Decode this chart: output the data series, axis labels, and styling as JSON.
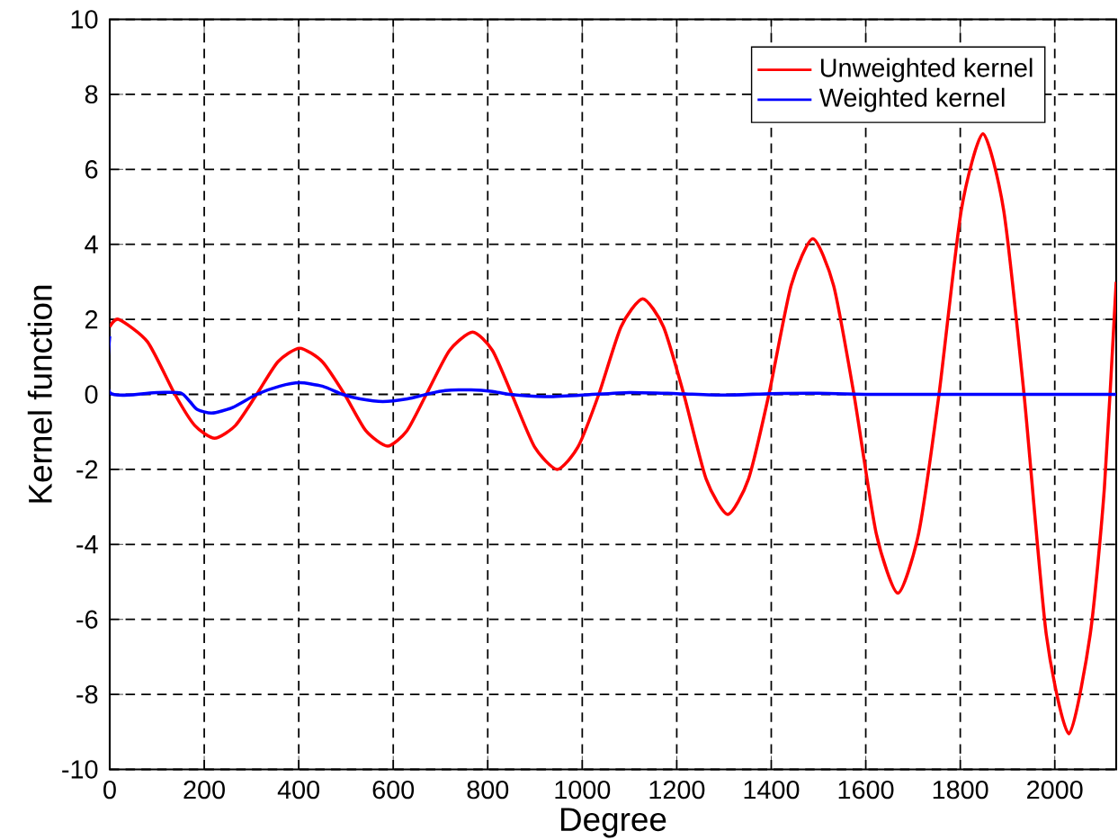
{
  "chart_data": {
    "type": "line",
    "xlabel": "Degree",
    "ylabel": "Kernel function",
    "xlim": [
      0,
      2130
    ],
    "ylim": [
      -10,
      10
    ],
    "xticks": [
      0,
      200,
      400,
      600,
      800,
      1000,
      1200,
      1400,
      1600,
      1800,
      2000
    ],
    "yticks": [
      -10,
      -8,
      -6,
      -4,
      -2,
      0,
      2,
      4,
      6,
      8,
      10
    ],
    "grid": true,
    "legend": "top right",
    "marker": "none",
    "line_style": "solid",
    "series": [
      {
        "name": "Unweighted kernel",
        "color": "#ff0000",
        "x": [
          0,
          19,
          80,
          138,
          180,
          222,
          266,
          311,
          356,
          402,
          450,
          497,
          542,
          588,
          629,
          670,
          719,
          768,
          810,
          851,
          899,
          947,
          991,
          1035,
          1082,
          1128,
          1172,
          1215,
          1262,
          1308,
          1352,
          1395,
          1442,
          1488,
          1532,
          1575,
          1622,
          1668,
          1712,
          1755,
          1802,
          1848,
          1892,
          1935,
          1982,
          2030,
          2075,
          2105,
          2130
        ],
        "values": [
          1.8,
          2.0,
          1.4,
          0,
          -0.83,
          -1.17,
          -0.83,
          0,
          0.87,
          1.23,
          0.87,
          0,
          -0.97,
          -1.38,
          -0.97,
          0,
          1.17,
          1.66,
          1.17,
          0,
          -1.4,
          -2.0,
          -1.4,
          0,
          1.8,
          2.55,
          1.8,
          0,
          -2.25,
          -3.2,
          -2.25,
          0,
          2.9,
          4.15,
          2.9,
          0,
          -3.7,
          -5.3,
          -3.7,
          0,
          4.9,
          6.95,
          4.9,
          0,
          -6.4,
          -9.05,
          -6.4,
          -2.5,
          3.0
        ]
      },
      {
        "name": "Weighted kernel",
        "color": "#0000ff",
        "x": [
          0,
          0,
          100,
          150,
          170,
          185,
          216,
          260,
          311,
          360,
          402,
          450,
          493,
          530,
          578,
          630,
          670,
          710,
          765,
          810,
          846,
          920,
          1000,
          1100,
          1200,
          1300,
          1400,
          1500,
          1600,
          2130
        ],
        "values": [
          1.55,
          0.05,
          0.05,
          0.04,
          -0.2,
          -0.4,
          -0.5,
          -0.35,
          0,
          0.22,
          0.31,
          0.22,
          0,
          -0.12,
          -0.19,
          -0.12,
          0,
          0.1,
          0.12,
          0.08,
          0,
          -0.06,
          -0.02,
          0.05,
          0.02,
          -0.02,
          0.02,
          0.03,
          0,
          0
        ]
      }
    ]
  }
}
